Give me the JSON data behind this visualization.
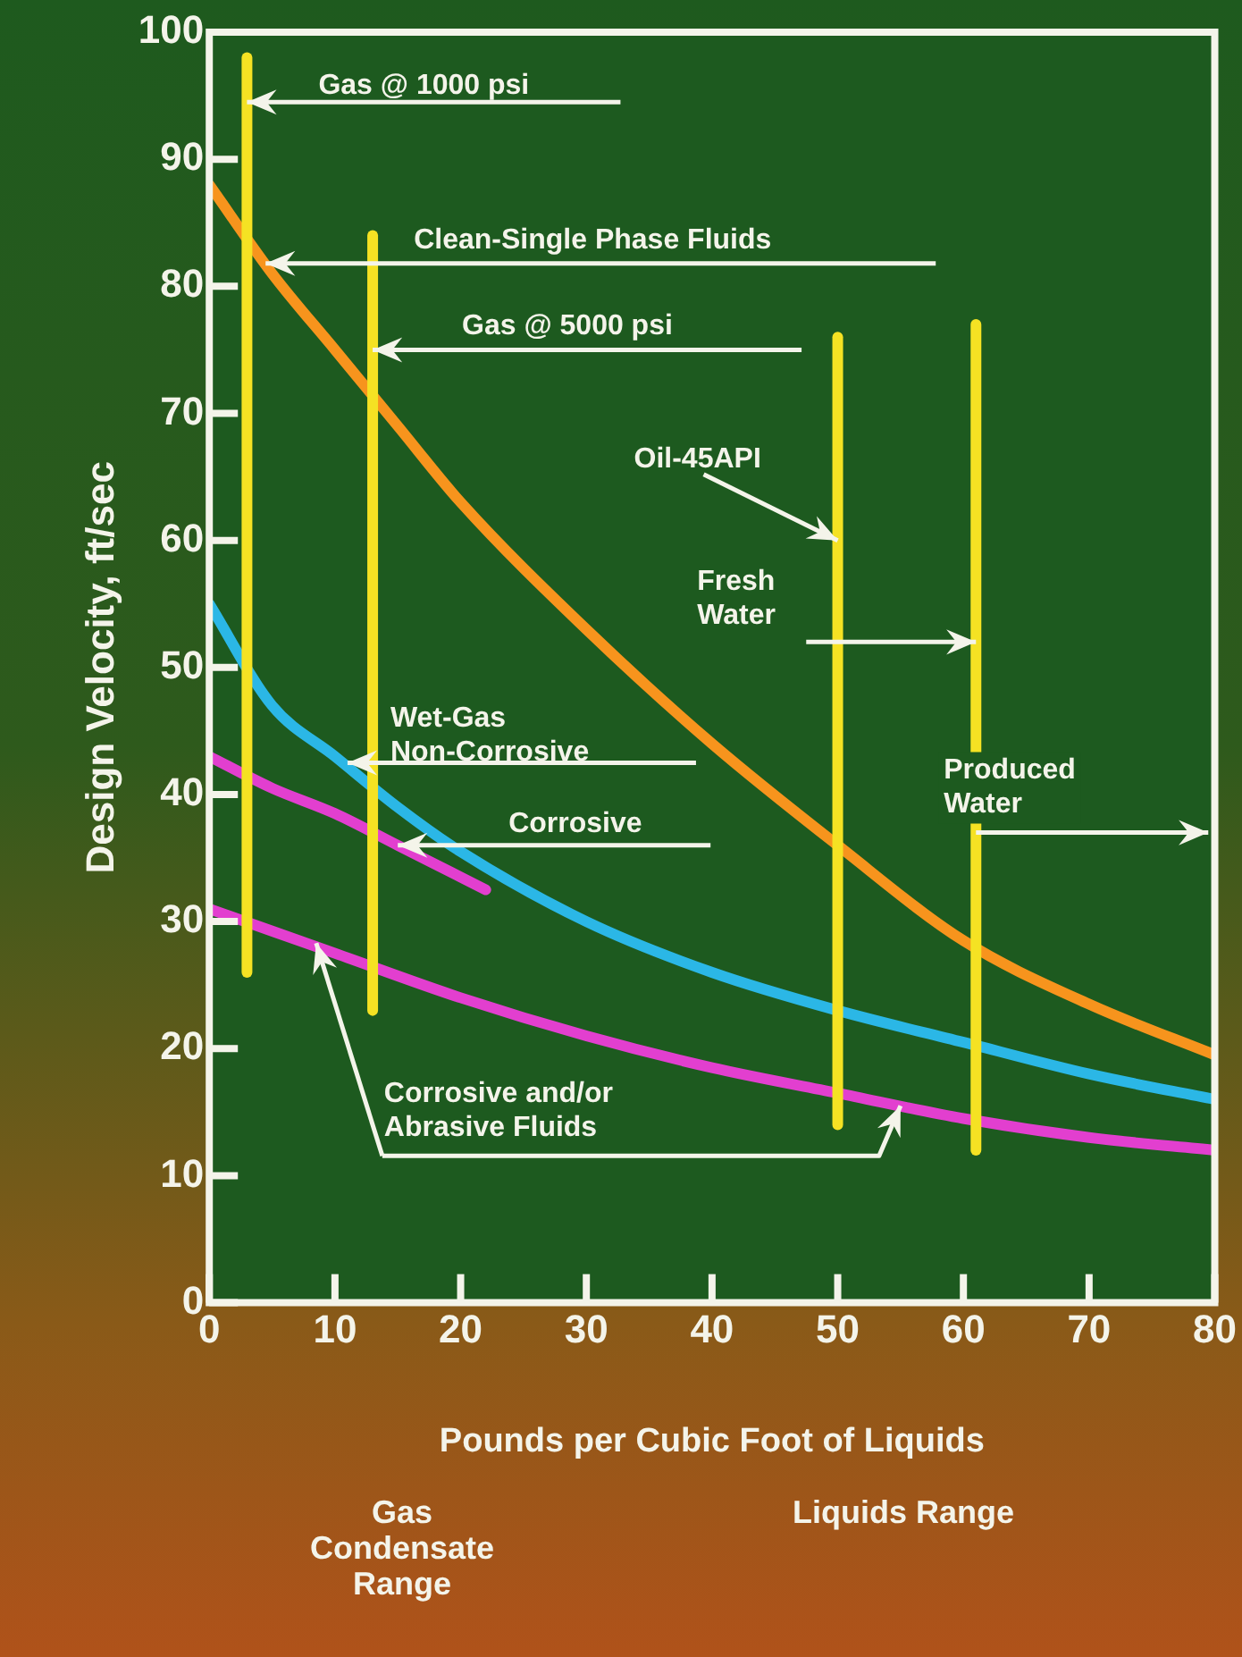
{
  "chart_data": {
    "type": "line",
    "xlabel": "Pounds per Cubic Foot of Liquids",
    "ylabel": "Design Velocity, ft/sec",
    "xlim": [
      0,
      80
    ],
    "xticks": [
      0,
      10,
      20,
      30,
      40,
      50,
      60,
      70,
      80
    ],
    "ylim": [
      0,
      100
    ],
    "yticks": [
      0,
      10,
      20,
      30,
      40,
      50,
      60,
      70,
      80,
      90,
      100
    ],
    "grid": false,
    "legend": false,
    "marker": "none",
    "line_style": "solid",
    "series": [
      {
        "color": "#f5e223",
        "x": [
          3,
          3
        ],
        "values": [
          26,
          98
        ]
      },
      {
        "color": "#f5e223",
        "x": [
          13,
          13
        ],
        "values": [
          23,
          84
        ]
      },
      {
        "color": "#f5e223",
        "x": [
          50,
          50
        ],
        "values": [
          14,
          76
        ]
      },
      {
        "color": "#f5e223",
        "x": [
          61,
          61
        ],
        "values": [
          12,
          77
        ]
      },
      {
        "color": "#f7941d",
        "x": [
          0,
          5,
          10,
          15,
          20,
          30,
          40,
          50,
          60,
          70,
          80
        ],
        "values": [
          88,
          81,
          75,
          69,
          63,
          53,
          44,
          36,
          28.5,
          23.5,
          19.5
        ]
      },
      {
        "color": "#e23fcf",
        "x": [
          0,
          5,
          10,
          15,
          20,
          22
        ],
        "values": [
          43,
          40.5,
          38.5,
          36,
          33.5,
          32.5
        ]
      },
      {
        "color": "#e23fcf",
        "x": [
          0,
          10,
          20,
          30,
          40,
          50,
          60,
          70,
          80
        ],
        "values": [
          31,
          27.5,
          24,
          21,
          18.5,
          16.5,
          14.5,
          13,
          12
        ]
      },
      {
        "color": "#2bb7e6",
        "x": [
          0,
          5,
          10,
          15,
          20,
          30,
          40,
          50,
          60,
          70,
          80
        ],
        "values": [
          55,
          47,
          43,
          39,
          35.5,
          30,
          26,
          23,
          20.5,
          18,
          16
        ]
      }
    ],
    "annotations": [
      {
        "text": "Gas @ 1000 psi",
        "x": 3,
        "y": 94.5
      },
      "Clean-Single Phase Fluids",
      "Gas @ 5000 psi",
      {
        "text": "Oil-45API",
        "x": 50,
        "y": 60
      },
      {
        "text": "Fresh\nWater",
        "x": 61,
        "y": 52
      },
      {
        "text": "Wet-Gas\nNon-Corrosive",
        "x": 11,
        "y": 42.5
      },
      "Corrosive",
      {
        "text": "Produced\nWater",
        "x": 61,
        "y": 37
      },
      {
        "text": "Corrosive and/or\nAbrasive Fluids",
        "x": 55,
        "y": 15.5
      },
      "Gas\nCondensate\nRange",
      "Liquids Range"
    ]
  }
}
